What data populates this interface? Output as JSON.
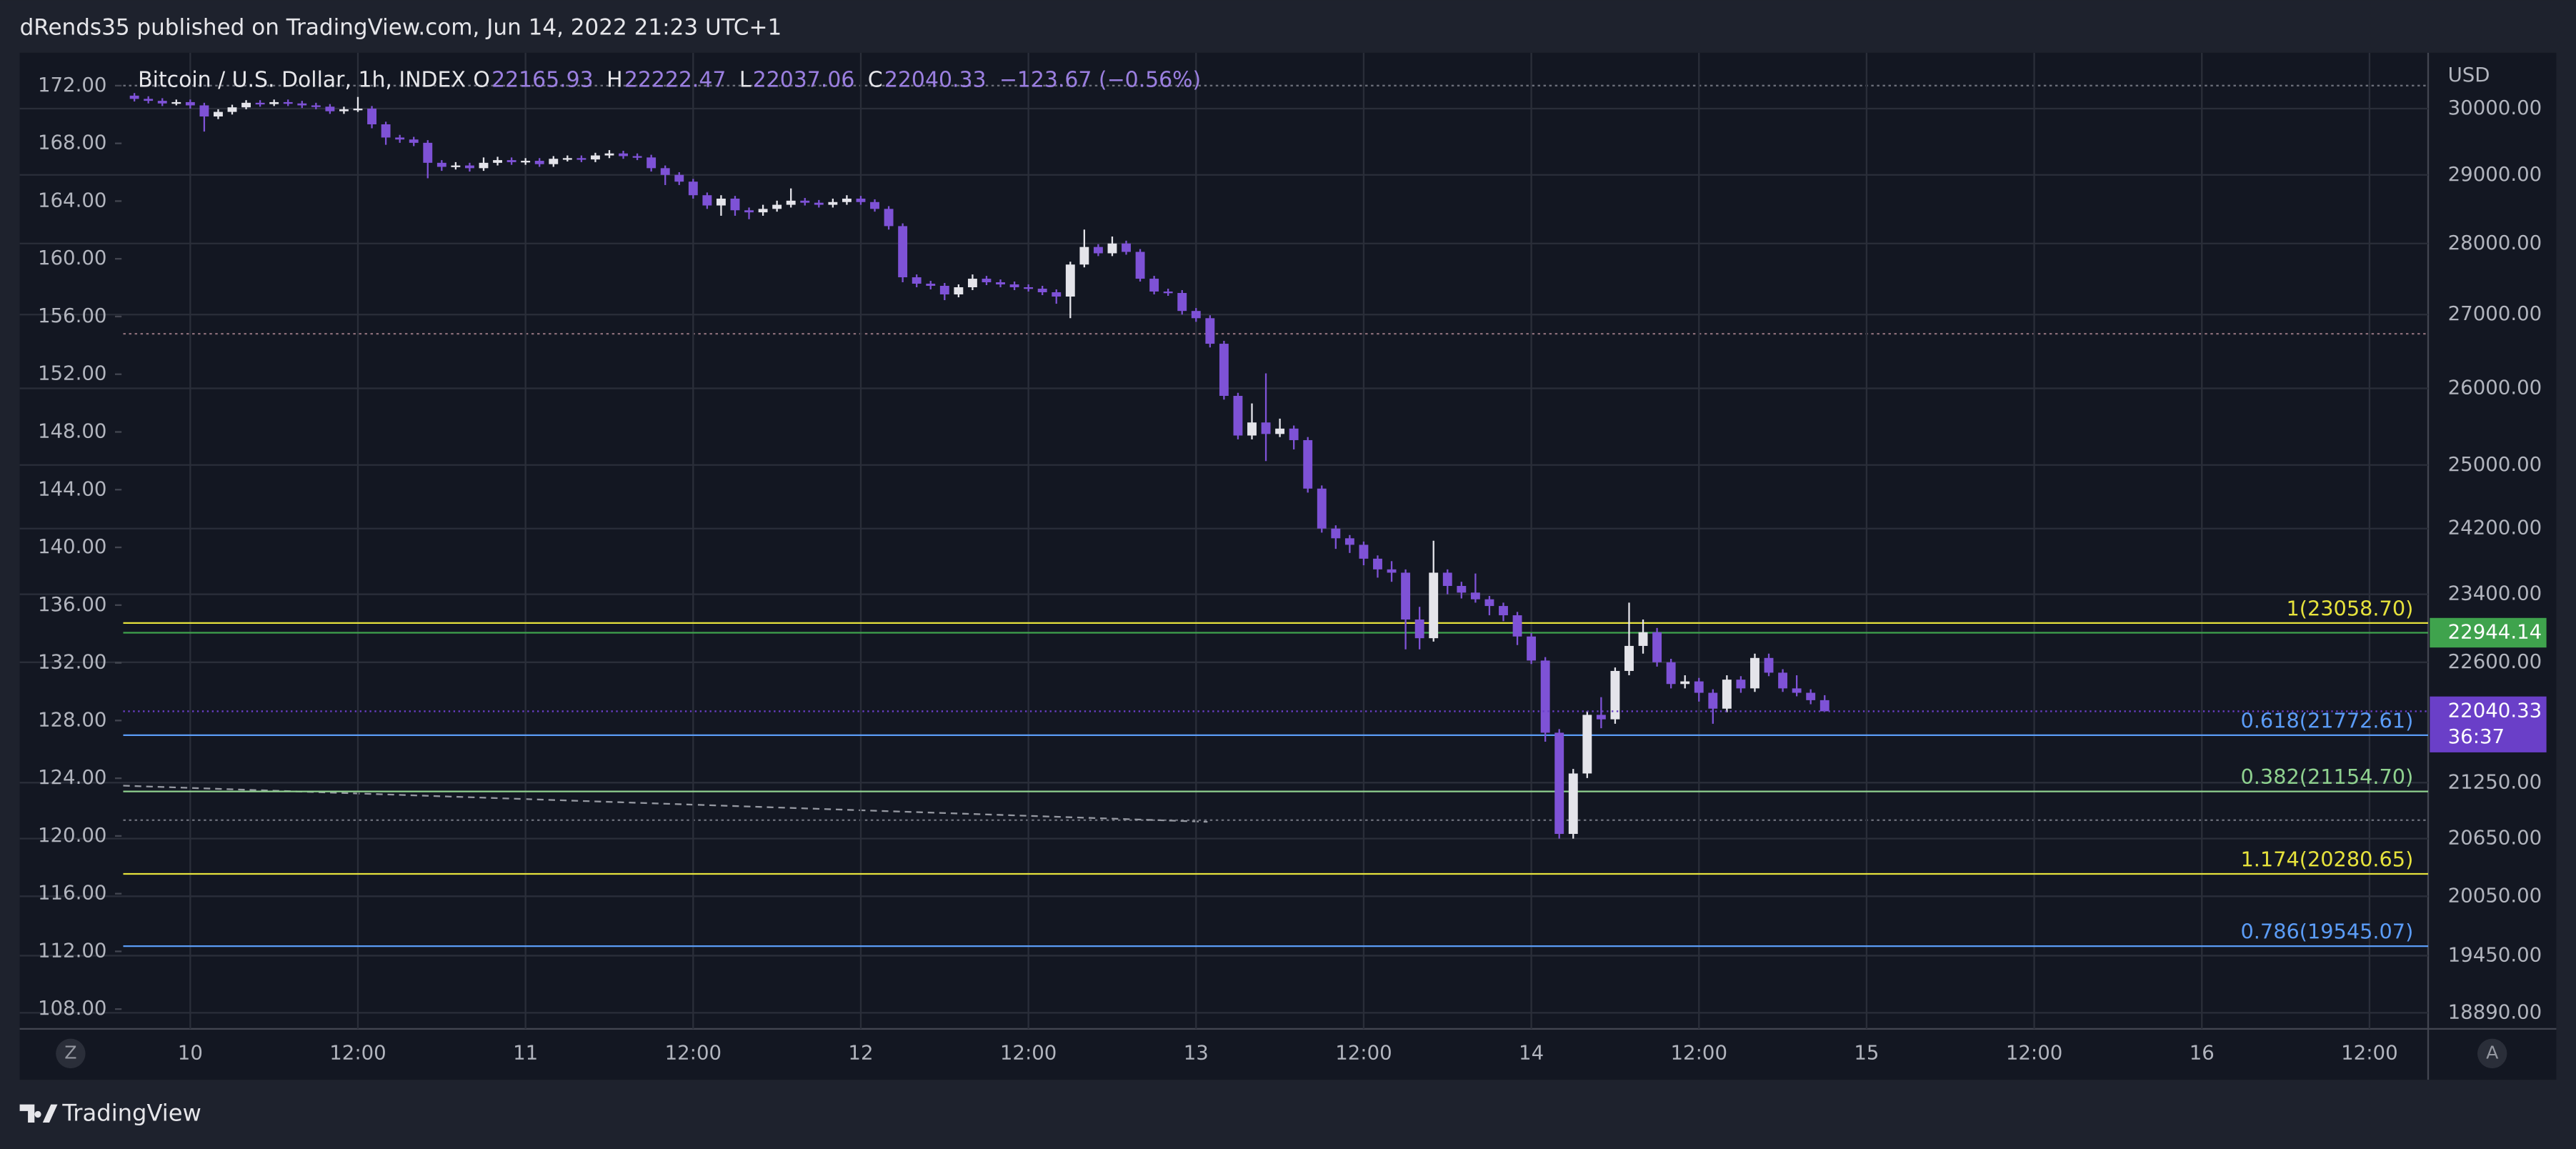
{
  "header": "dRends35 published on TradingView.com, Jun 14, 2022 21:23 UTC+1",
  "chart_data": {
    "type": "candlestick",
    "title": "Bitcoin / U.S. Dollar, 1h, INDEX",
    "ohlc_labels": [
      "O",
      "H",
      "L",
      "C"
    ],
    "change": "−123.67 (−0.56%)",
    "up_color": "#e4e4ea",
    "down_color": "#7e52d6",
    "x": [
      -4,
      -3,
      -2,
      -1,
      0,
      1,
      2,
      3,
      4,
      5,
      6,
      7,
      8,
      9,
      10,
      11,
      12,
      13,
      14,
      15,
      16,
      17,
      18,
      19,
      20,
      21,
      22,
      23,
      24,
      25,
      26,
      27,
      28,
      29,
      30,
      31,
      32,
      33,
      34,
      35,
      36,
      37,
      38,
      39,
      40,
      41,
      42,
      43,
      44,
      45,
      46,
      47,
      48,
      49,
      50,
      51,
      52,
      53,
      54,
      55,
      56,
      57,
      58,
      59,
      60,
      61,
      62,
      63,
      64,
      65,
      66,
      67,
      68,
      69,
      70,
      71,
      72,
      73,
      74,
      75,
      76,
      77,
      78,
      79,
      80,
      81,
      82,
      83,
      84,
      85,
      86,
      87,
      88,
      89,
      90,
      91,
      92,
      93,
      94,
      95,
      96,
      97,
      98,
      99,
      100,
      101,
      102,
      103,
      104,
      105,
      106,
      107,
      108,
      109,
      110,
      111,
      112,
      113,
      114,
      115,
      116,
      117
    ],
    "open": [
      30200,
      30150,
      30120,
      30080,
      30100,
      30050,
      29880,
      29950,
      30020,
      30090,
      30070,
      30100,
      30080,
      30050,
      30030,
      29960,
      29990,
      30000,
      29760,
      29560,
      29530,
      29480,
      29180,
      29120,
      29140,
      29100,
      29180,
      29220,
      29190,
      29210,
      29160,
      29240,
      29250,
      29230,
      29290,
      29320,
      29280,
      29260,
      29100,
      29000,
      28900,
      28700,
      28550,
      28650,
      28480,
      28450,
      28500,
      28560,
      28620,
      28590,
      28560,
      28600,
      28650,
      28600,
      28500,
      28250,
      27520,
      27430,
      27400,
      27280,
      27380,
      27500,
      27450,
      27420,
      27380,
      27360,
      27310,
      27250,
      27700,
      27950,
      27860,
      28000,
      27880,
      27500,
      27320,
      27300,
      27050,
      26950,
      26600,
      25900,
      25380,
      25550,
      25400,
      25470,
      25320,
      24700,
      24200,
      24080,
      24000,
      23830,
      23700,
      23660,
      23100,
      22880,
      23660,
      23500,
      23420,
      23340,
      23260,
      23150,
      22900,
      22620,
      21800,
      20700,
      21350,
      22000,
      21950,
      22500,
      22790,
      22950,
      22600,
      22350,
      22380,
      22250,
      22070,
      22400,
      22300,
      22650,
      22480,
      22300,
      22250,
      22165.93
    ],
    "high": [
      30240,
      30190,
      30160,
      30140,
      30140,
      30090,
      29990,
      30060,
      30130,
      30130,
      30140,
      30140,
      30120,
      30090,
      30070,
      30030,
      30180,
      30040,
      29800,
      29600,
      29570,
      29520,
      29220,
      29190,
      29180,
      29260,
      29270,
      29260,
      29250,
      29250,
      29280,
      29290,
      29290,
      29330,
      29370,
      29360,
      29320,
      29300,
      29140,
      29040,
      28940,
      28740,
      28700,
      28690,
      28520,
      28560,
      28620,
      28800,
      28660,
      28630,
      28650,
      28700,
      28690,
      28640,
      28540,
      28290,
      27560,
      27470,
      27440,
      27420,
      27560,
      27540,
      27490,
      27460,
      27420,
      27400,
      27350,
      27740,
      28200,
      27990,
      28100,
      28040,
      27920,
      27540,
      27360,
      27340,
      27090,
      26990,
      26640,
      25940,
      25800,
      26200,
      25600,
      25510,
      25360,
      24740,
      24240,
      24120,
      24040,
      23870,
      23800,
      23700,
      23250,
      24050,
      23700,
      23550,
      23650,
      23380,
      23300,
      23190,
      22940,
      22660,
      21840,
      21400,
      22040,
      22200,
      22540,
      23300,
      23100,
      23000,
      22640,
      22450,
      22420,
      22290,
      22450,
      22440,
      22700,
      22700,
      22520,
      22450,
      22290,
      22222.47
    ],
    "low": [
      30110,
      30080,
      30040,
      30050,
      30000,
      29650,
      29840,
      29910,
      29990,
      30030,
      30040,
      30040,
      30010,
      29990,
      29920,
      29920,
      29950,
      29700,
      29450,
      29480,
      29430,
      28950,
      29060,
      29080,
      29050,
      29060,
      29140,
      29150,
      29150,
      29120,
      29120,
      29200,
      29190,
      29190,
      29250,
      29240,
      29220,
      29050,
      28850,
      28850,
      28650,
      28500,
      28400,
      28400,
      28350,
      28400,
      28460,
      28520,
      28550,
      28520,
      28520,
      28560,
      28560,
      28460,
      28200,
      27450,
      27380,
      27350,
      27200,
      27240,
      27340,
      27410,
      27380,
      27340,
      27320,
      27270,
      27150,
      26950,
      27660,
      27820,
      27820,
      27840,
      27460,
      27280,
      27260,
      27000,
      26900,
      26550,
      25850,
      25330,
      25330,
      25050,
      25360,
      25200,
      24650,
      24150,
      23950,
      23900,
      23750,
      23600,
      23550,
      22750,
      22750,
      22840,
      23400,
      23350,
      23300,
      23150,
      23080,
      22800,
      22580,
      21700,
      20650,
      20650,
      21300,
      21850,
      21900,
      22450,
      22700,
      22550,
      22300,
      22300,
      22150,
      21900,
      22030,
      22250,
      22260,
      22440,
      22260,
      22210,
      22120,
      22037.06
    ],
    "close": [
      30150,
      30120,
      30080,
      30100,
      30050,
      29880,
      29950,
      30020,
      30090,
      30070,
      30100,
      30080,
      30050,
      30030,
      29960,
      29990,
      30000,
      29760,
      29560,
      29530,
      29480,
      29180,
      29120,
      29140,
      29100,
      29180,
      29220,
      29190,
      29210,
      29160,
      29240,
      29250,
      29230,
      29290,
      29320,
      29280,
      29260,
      29100,
      29000,
      28900,
      28700,
      28550,
      28650,
      28480,
      28450,
      28500,
      28560,
      28620,
      28590,
      28560,
      28600,
      28650,
      28600,
      28500,
      28250,
      27520,
      27430,
      27400,
      27280,
      27380,
      27500,
      27450,
      27420,
      27380,
      27360,
      27310,
      27250,
      27700,
      27950,
      27860,
      28000,
      27880,
      27500,
      27320,
      27300,
      27050,
      26950,
      26600,
      25900,
      25380,
      25550,
      25400,
      25470,
      25320,
      24700,
      24200,
      24080,
      24000,
      23830,
      23700,
      23660,
      23100,
      22880,
      23660,
      23500,
      23420,
      23340,
      23260,
      23150,
      22900,
      22620,
      21800,
      20700,
      21350,
      22000,
      21950,
      22500,
      22790,
      22950,
      22600,
      22350,
      22380,
      22250,
      22070,
      22400,
      22300,
      22650,
      22480,
      22300,
      22250,
      22165.93,
      22040.33
    ],
    "log_y": true,
    "y_axis_label": "USD",
    "ylim": [
      18735,
      30870
    ],
    "yticks": [
      {
        "value": 30000,
        "label": "30000.00"
      },
      {
        "value": 29000,
        "label": "29000.00"
      },
      {
        "value": 28000,
        "label": "28000.00"
      },
      {
        "value": 27000,
        "label": "27000.00"
      },
      {
        "value": 26000,
        "label": "26000.00"
      },
      {
        "value": 25000,
        "label": "25000.00"
      },
      {
        "value": 24200,
        "label": "24200.00"
      },
      {
        "value": 23400,
        "label": "23400.00"
      },
      {
        "value": 22600,
        "label": "22600.00"
      },
      {
        "value": 21250,
        "label": "21250.00"
      },
      {
        "value": 20650,
        "label": "20650.00"
      },
      {
        "value": 20050,
        "label": "20050.00"
      },
      {
        "value": 19450,
        "label": "19450.00"
      },
      {
        "value": 18890,
        "label": "18890.00"
      }
    ],
    "y2lim": [
      106.63,
      174.28
    ],
    "y2ticks": [
      {
        "value": 172,
        "label": "172.00"
      },
      {
        "value": 168,
        "label": "168.00"
      },
      {
        "value": 164,
        "label": "164.00"
      },
      {
        "value": 160,
        "label": "160.00"
      },
      {
        "value": 156,
        "label": "156.00"
      },
      {
        "value": 152,
        "label": "152.00"
      },
      {
        "value": 148,
        "label": "148.00"
      },
      {
        "value": 144,
        "label": "144.00"
      },
      {
        "value": 140,
        "label": "140.00"
      },
      {
        "value": 136,
        "label": "136.00"
      },
      {
        "value": 132,
        "label": "132.00"
      },
      {
        "value": 128,
        "label": "128.00"
      },
      {
        "value": 124,
        "label": "124.00"
      },
      {
        "value": 120,
        "label": "120.00"
      },
      {
        "value": 116,
        "label": "116.00"
      },
      {
        "value": 112,
        "label": "112.00"
      },
      {
        "value": 108,
        "label": "108.00"
      }
    ],
    "xlim": [
      -4.8,
      160.2
    ],
    "xticks": [
      {
        "value": 0,
        "label": "10"
      },
      {
        "value": 12,
        "label": "12:00"
      },
      {
        "value": 24,
        "label": "11"
      },
      {
        "value": 36,
        "label": "12:00"
      },
      {
        "value": 48,
        "label": "12"
      },
      {
        "value": 60,
        "label": "12:00"
      },
      {
        "value": 72,
        "label": "13"
      },
      {
        "value": 84,
        "label": "12:00"
      },
      {
        "value": 96,
        "label": "14"
      },
      {
        "value": 108,
        "label": "12:00"
      },
      {
        "value": 120,
        "label": "15"
      },
      {
        "value": 132,
        "label": "12:00"
      },
      {
        "value": 144,
        "label": "16"
      },
      {
        "value": 156,
        "label": "12:00"
      }
    ],
    "grid": true,
    "levels": [
      {
        "label": "1(23058.70)",
        "price": 23058.7,
        "color": "#e6e23c"
      },
      {
        "label": "0.618(21772.61)",
        "price": 21772.61,
        "color": "#5b9cf6"
      },
      {
        "label": "0.382(21154.70)",
        "price": 21154.7,
        "color": "#8fd18f"
      },
      {
        "label": "1.174(20280.65)",
        "price": 20280.65,
        "color": "#e6e23c"
      },
      {
        "label": "0.786(19545.07)",
        "price": 19545.07,
        "color": "#5b9cf6"
      }
    ],
    "price_line": {
      "value": 22944.14,
      "color": "#3fa34d"
    },
    "last_price_color": "#6a3fc8",
    "countdown": "36:37"
  },
  "buttons": [
    "Z",
    "A"
  ],
  "footer": "TradingView"
}
